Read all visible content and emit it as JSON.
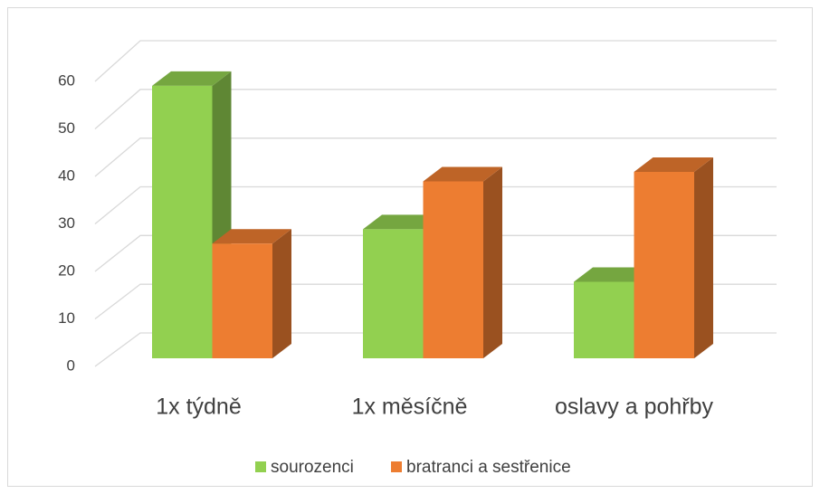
{
  "chart_data": {
    "type": "bar3d",
    "categories": [
      "1x týdně",
      "1x měsíčně",
      "oslavy a pohřby"
    ],
    "series": [
      {
        "name": "sourozenci",
        "color": "#92d050",
        "values": [
          57,
          27,
          16
        ]
      },
      {
        "name": "bratranci a sestřenice",
        "color": "#ed7d31",
        "values": [
          24,
          37,
          39
        ]
      }
    ],
    "ylim": [
      0,
      60
    ],
    "yticks": [
      0,
      10,
      20,
      30,
      40,
      50,
      60
    ],
    "grid": true,
    "legend": "bottom"
  }
}
